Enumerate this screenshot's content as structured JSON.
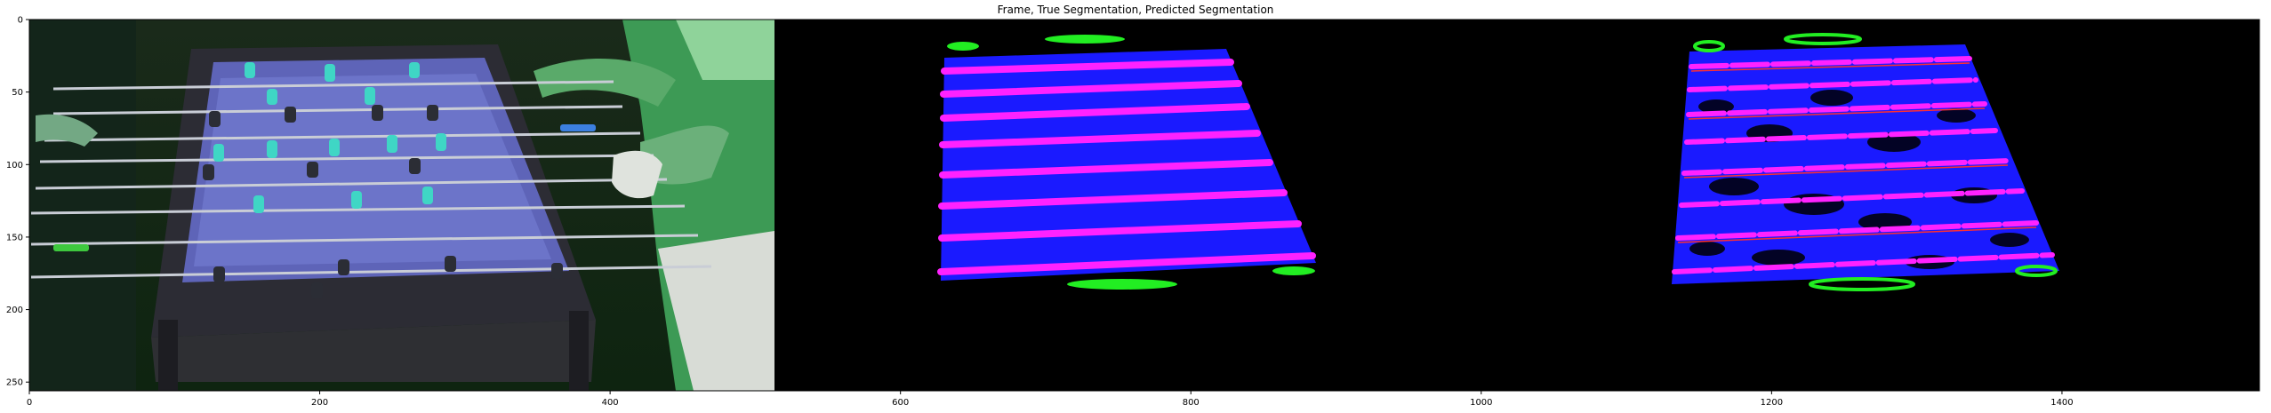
{
  "figure": {
    "title": "Frame, True Segmentation, Predicted Segmentation"
  },
  "axes": {
    "x_ticks": [
      {
        "value": 0,
        "label": "0"
      },
      {
        "value": 200,
        "label": "200"
      },
      {
        "value": 400,
        "label": "400"
      },
      {
        "value": 600,
        "label": "600"
      },
      {
        "value": 800,
        "label": "800"
      },
      {
        "value": 1000,
        "label": "1000"
      },
      {
        "value": 1200,
        "label": "1200"
      },
      {
        "value": 1400,
        "label": "1400"
      }
    ],
    "y_ticks": [
      {
        "value": 0,
        "label": "0"
      },
      {
        "value": 50,
        "label": "50"
      },
      {
        "value": 100,
        "label": "100"
      },
      {
        "value": 150,
        "label": "150"
      },
      {
        "value": 200,
        "label": "200"
      },
      {
        "value": 250,
        "label": "250"
      }
    ],
    "x_range": [
      0,
      1536
    ],
    "y_range": [
      0,
      256
    ]
  },
  "colors": {
    "field_blue": "#1a1aff",
    "rod_magenta": "#ff22ff",
    "blob_green": "#22ee22",
    "background_black": "#000000",
    "table_felt": "#6b72c0"
  },
  "panels": [
    "original frame",
    "true segmentation mask",
    "predicted segmentation mask"
  ]
}
